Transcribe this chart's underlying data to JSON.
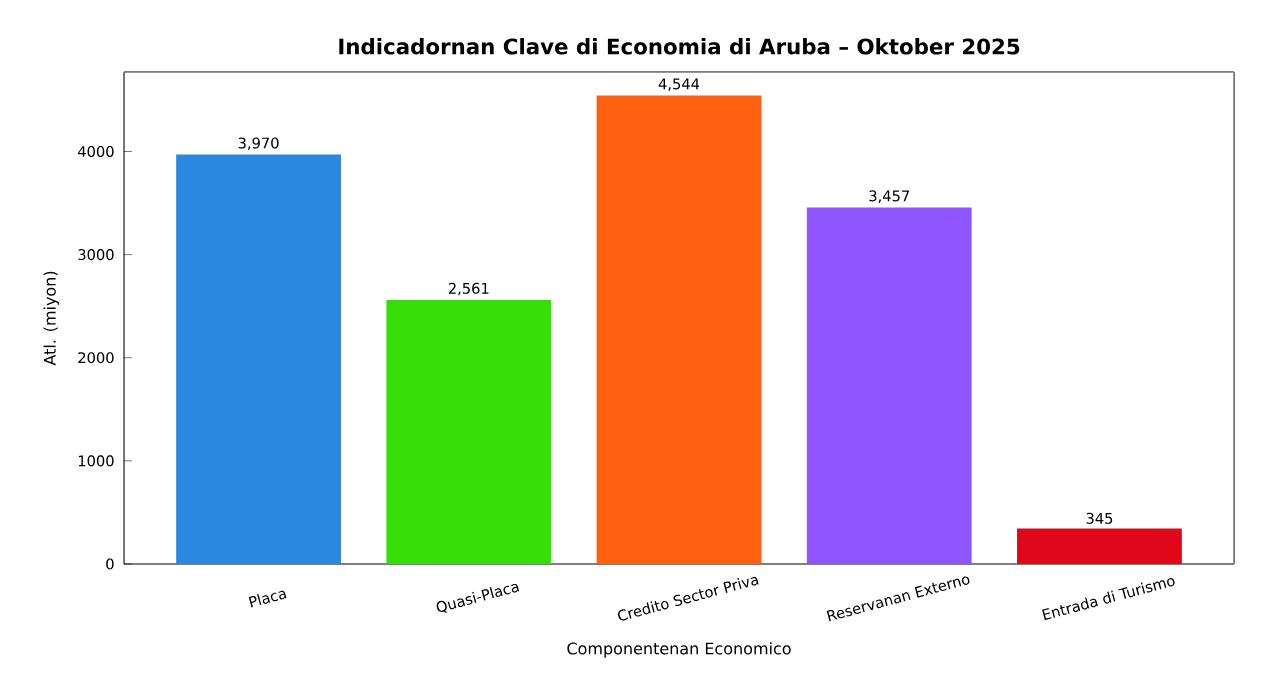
{
  "chart_data": {
    "type": "bar",
    "title": "Indicadornan Clave di Economia di Aruba – Oktober 2025",
    "xlabel": "Componentenan Economico",
    "ylabel": "Atl. (miyon)",
    "categories": [
      "Placa",
      "Quasi-Placa",
      "Credito Sector Priva",
      "Reservanan Externo",
      "Entrada di Turismo"
    ],
    "values": [
      3970,
      2561,
      4544,
      3457,
      345
    ],
    "colors": [
      "#2b88e0",
      "#37dd08",
      "#ff6010",
      "#8e55ff",
      "#e0071b"
    ],
    "value_labels": [
      "3,970",
      "2,561",
      "4,544",
      "3,457",
      "345"
    ],
    "ylim": [
      0,
      4771
    ],
    "yticks": [
      0,
      1000,
      2000,
      3000,
      4000
    ],
    "grid": false
  }
}
